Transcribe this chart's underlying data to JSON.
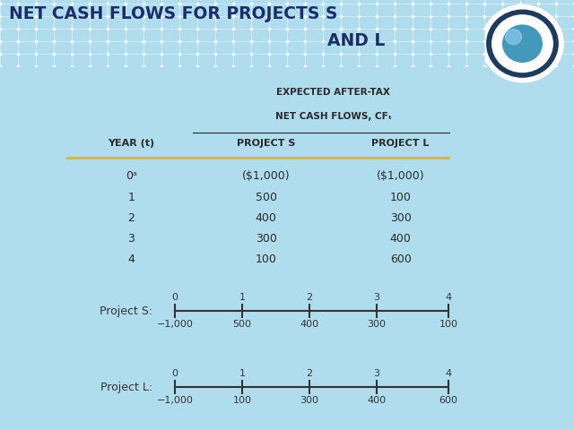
{
  "title_line1": "NET CASH FLOWS FOR PROJECTS S",
  "title_line2": "AND L",
  "title_color": "#1A2E6B",
  "header_bg": "#B0DDED",
  "navy_bar_color": "#1E3A5F",
  "table_bg": "#F2EDDF",
  "bottom_bg": "#F2EDDF",
  "main_bg": "#B0DDED",
  "col1_header": "YEAR (t)",
  "col2_header": "PROJECT S",
  "col3_header": "PROJECT L",
  "col_header_line1": "EXPECTED AFTER-TAX",
  "col_header_line2": "NET CASH FLOWS, CF",
  "years": [
    "0ᵃ",
    "1",
    "2",
    "3",
    "4"
  ],
  "project_s": [
    "($1,000)",
    "500",
    "400",
    "300",
    "100"
  ],
  "project_l": [
    "($1,000)",
    "100",
    "300",
    "400",
    "600"
  ],
  "timeline_labels": [
    "0",
    "1",
    "2",
    "3",
    "4"
  ],
  "timeline_s_values": [
    "−1,000",
    "500",
    "400",
    "300",
    "100"
  ],
  "timeline_l_values": [
    "−1,000",
    "100",
    "300",
    "400",
    "600"
  ],
  "project_s_label": "Project S:",
  "project_l_label": "Project L:",
  "separator_color": "#D4B84A",
  "text_color": "#2A2A2A",
  "header_text_color": "#1A2E6B"
}
